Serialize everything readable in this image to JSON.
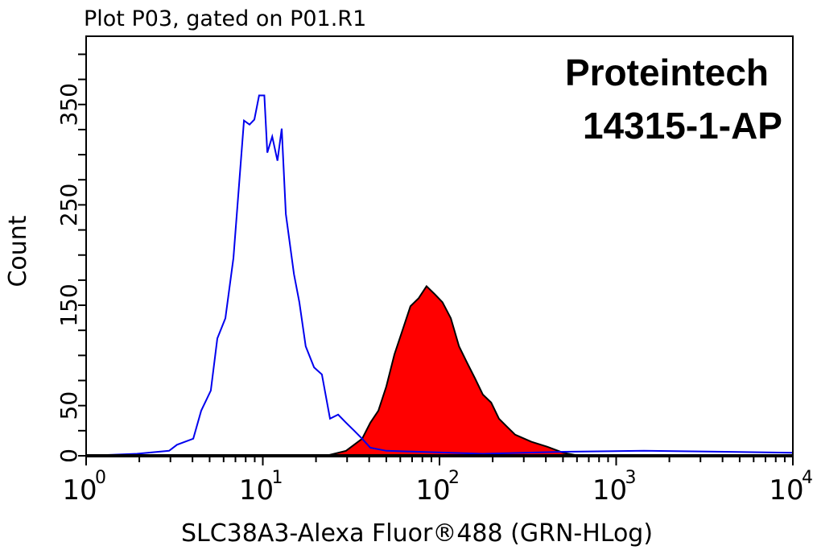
{
  "chart_data": {
    "type": "area",
    "title": "Plot P03, gated on P01.R1",
    "annotations": [
      "Proteintech",
      "14315-1-AP"
    ],
    "xlabel": "SLC38A3-Alexa Fluor®488 (GRN-HLog)",
    "ylabel": "Count",
    "x_scale": "log",
    "xlim": [
      1,
      10000
    ],
    "ylim": [
      0,
      418
    ],
    "x_ticks": [
      {
        "base": "10",
        "exp": "0"
      },
      {
        "base": "10",
        "exp": "1"
      },
      {
        "base": "10",
        "exp": "2"
      },
      {
        "base": "10",
        "exp": "3"
      },
      {
        "base": "10",
        "exp": "4"
      }
    ],
    "y_tick_labels": [
      "0",
      "50",
      "150",
      "250",
      "350"
    ],
    "grid": false,
    "series": [
      {
        "style": "outline",
        "color": "#0000ee",
        "x": [
          1,
          1.94,
          2.95,
          3.27,
          4.04,
          4.48,
          5.08,
          5.53,
          6.14,
          6.82,
          7.34,
          7.82,
          8.41,
          8.96,
          9.53,
          10.2,
          10.6,
          11.3,
          12.1,
          12.8,
          13.5,
          15.0,
          16.1,
          17.5,
          19.5,
          21.6,
          24.0,
          26.7,
          29.6,
          32.9,
          36.5,
          40.6,
          50,
          176,
          503,
          1436,
          4100,
          10000
        ],
        "y": [
          0,
          2,
          5,
          11,
          17,
          45,
          65,
          117,
          137,
          197,
          270,
          334,
          330,
          335,
          359,
          359,
          302,
          318,
          294,
          326,
          241,
          181,
          153,
          109,
          88,
          81,
          37,
          41,
          33,
          25,
          17,
          8,
          5,
          2,
          4,
          5,
          4,
          3
        ]
      },
      {
        "style": "filled",
        "color": "#ff0000",
        "edge_color": "#000000",
        "x": [
          22.8,
          29.6,
          36.5,
          40.6,
          45.1,
          50.0,
          55.6,
          61.7,
          68.5,
          76.2,
          84.5,
          94.0,
          104,
          116,
          129,
          143,
          159,
          176,
          196,
          217,
          241,
          268,
          331,
          408,
          503,
          621
        ],
        "y": [
          0,
          5,
          17,
          33,
          45,
          69,
          101,
          125,
          149,
          157,
          169,
          161,
          153,
          137,
          109,
          93,
          77,
          61,
          53,
          37,
          29,
          21,
          14,
          9,
          3,
          0
        ]
      }
    ]
  }
}
